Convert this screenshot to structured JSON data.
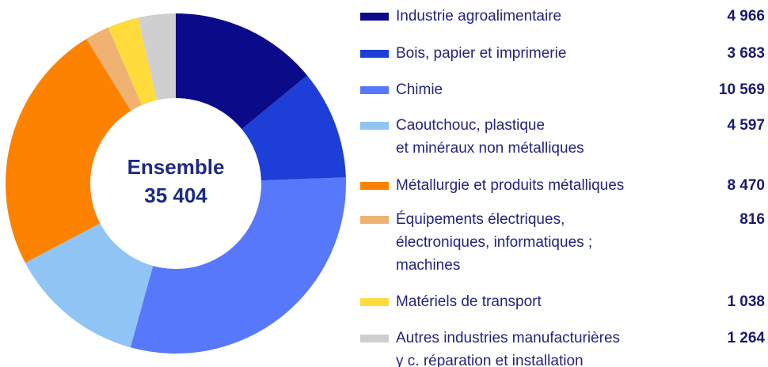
{
  "chart_data": {
    "type": "donut",
    "categories": [
      "Industrie agroalimentaire",
      "Bois, papier et imprimerie",
      "Chimie",
      "Caoutchouc, plastique\net minéraux non métalliques",
      "Métallurgie et produits métalliques",
      "Équipements électriques,\nélectroniques, informatiques ;\nmachines",
      "Matériels de transport",
      "Autres industries manufacturières\ny c. réparation et installation"
    ],
    "values": [
      4966,
      3683,
      10569,
      4597,
      8470,
      816,
      1038,
      1264
    ],
    "value_labels": [
      "4 966",
      "3 683",
      "10 569",
      "4 597",
      "8 470",
      "816",
      "1 038",
      "1 264"
    ],
    "colors": [
      "#0b0b8a",
      "#1e3ed8",
      "#5878fc",
      "#90c4f4",
      "#fd8200",
      "#efb273",
      "#ffdc3c",
      "#cfcfcf"
    ],
    "total_name": "Ensemble",
    "total": 35404,
    "total_label": "35 404"
  }
}
